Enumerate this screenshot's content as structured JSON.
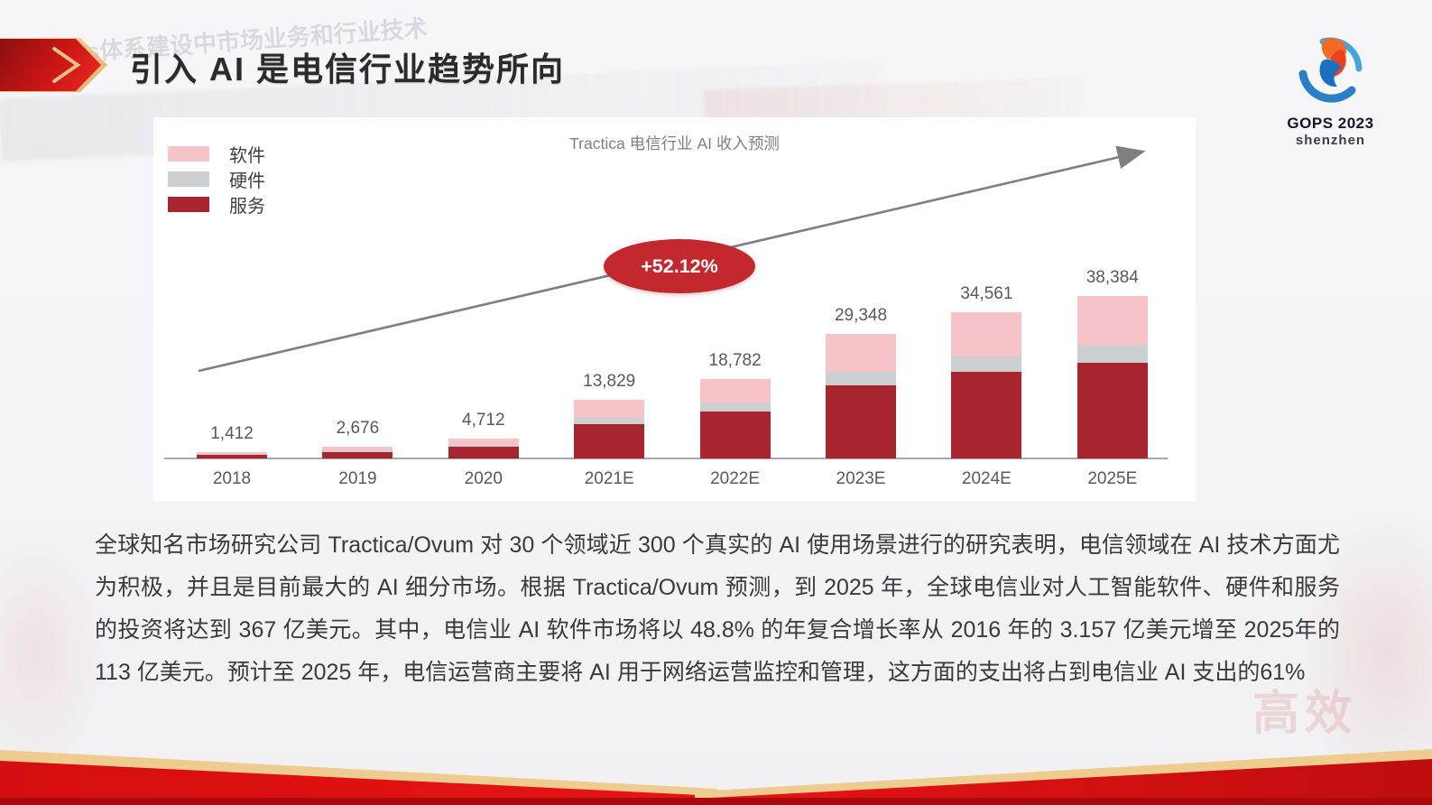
{
  "header": {
    "title": "引入 AI 是电信行业趋势所向"
  },
  "logo": {
    "title": "GOPS 2023",
    "subtitle": "shenzhen"
  },
  "watermarks": {
    "top_left": "XOps体系建设中市场业务和行业技术",
    "bottom_right": "高效"
  },
  "chart_data": {
    "type": "bar",
    "stacked": true,
    "title": "Tractica 电信行业 AI 收入预测",
    "categories": [
      "2018",
      "2019",
      "2020",
      "2021E",
      "2022E",
      "2023E",
      "2024E",
      "2025E"
    ],
    "totals": [
      1412,
      2676,
      4712,
      13829,
      18782,
      29348,
      34561,
      38384
    ],
    "total_labels": [
      "1,412",
      "2,676",
      "4,712",
      "13,829",
      "18,782",
      "29,348",
      "34,561",
      "38,384"
    ],
    "series": [
      {
        "name": "软件",
        "color": "#f6c3c8",
        "values": [
          424,
          803,
          1414,
          4149,
          5635,
          8804,
          10368,
          11515
        ]
      },
      {
        "name": "硬件",
        "color": "#cdced0",
        "values": [
          155,
          294,
          518,
          1521,
          2066,
          3228,
          3802,
          4222
        ]
      },
      {
        "name": "服务",
        "color": "#a8242e",
        "values": [
          833,
          1579,
          2780,
          8159,
          11081,
          17316,
          20391,
          22647
        ]
      }
    ],
    "annotation": {
      "label": "+52.12%",
      "color": "#c2282e"
    },
    "ylim": [
      0,
      40000
    ],
    "legend_position": "top-left",
    "grid": false
  },
  "paragraph": {
    "text": "全球知名市场研究公司 Tractica/Ovum 对 30 个领域近 300 个真实的 AI 使用场景进行的研究表明，电信领域在 AI 技术方面尤为积极，并且是目前最大的 AI 细分市场。根据 Tractica/Ovum 预测，到 2025 年，全球电信业对人工智能软件、硬件和服务的投资将达到 367 亿美元。其中，电信业 AI 软件市场将以 48.8% 的年复合增长率从 2016 年的 3.157 亿美元增至 2025年的 113 亿美元。预计至 2025 年，电信运营商主要将 AI 用于网络运营监控和管理，这方面的支出将占到电信业 AI 支出的61%"
  },
  "colors": {
    "accent_red": "#c2282e",
    "ribbon_red_bright": "#e21212",
    "ribbon_red_dark": "#b30b0e",
    "ribbon_gold": "#eecb8e",
    "axis_gray": "#a8a8a8",
    "label_gray": "#595959",
    "chart_title_gray": "#7f7f7f"
  }
}
